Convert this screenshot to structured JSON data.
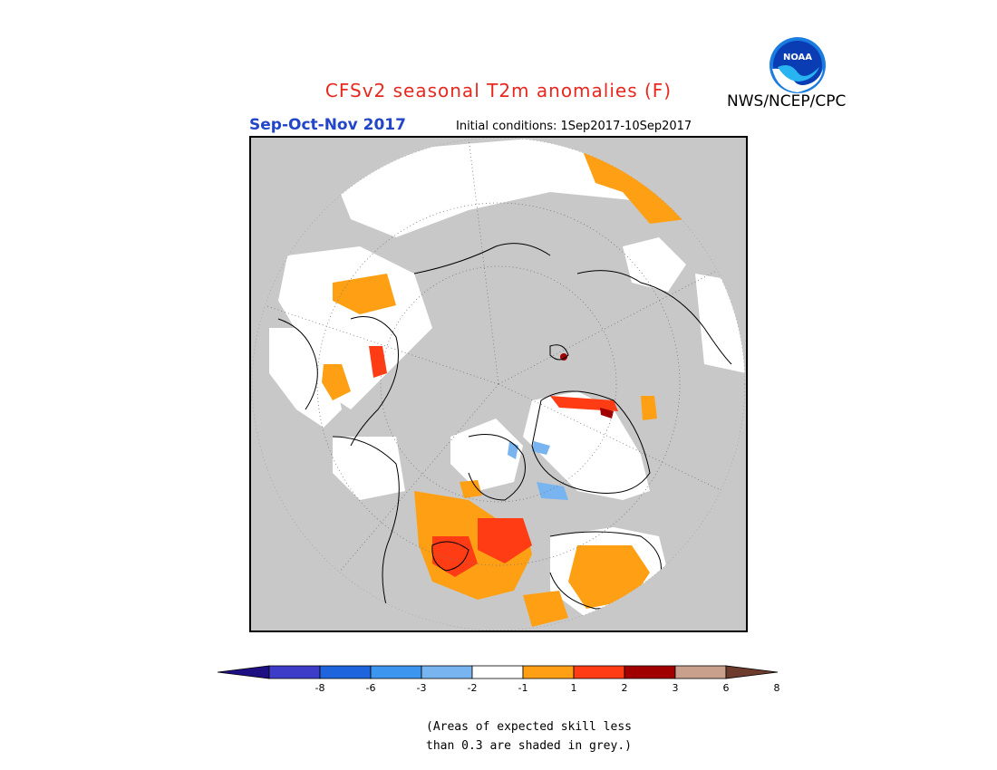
{
  "header": {
    "title": "CFSv2 seasonal T2m anomalies (F)",
    "season": "Sep-Oct-Nov 2017",
    "initial_conditions": "Initial conditions: 1Sep2017-10Sep2017",
    "agency": "NWS/NCEP/CPC",
    "logo_text": "NOAA"
  },
  "legend": {
    "colors": [
      "#1e0f82",
      "#3c3cc8",
      "#1e64dc",
      "#3c96f0",
      "#78b4f0",
      "#ffffff",
      "#ffa014",
      "#ff3c14",
      "#a00000",
      "#c8a08c",
      "#6e3c2d"
    ],
    "tick_labels": [
      "-8",
      "-6",
      "-3",
      "-2",
      "-1",
      "1",
      "2",
      "3",
      "6",
      "8"
    ]
  },
  "note": {
    "line1": "(Areas of expected skill less",
    "line2": "than 0.3 are shaded in grey.)"
  },
  "map": {
    "projection": "north-polar-stereographic",
    "colors": {
      "no_skill": "#c8c8c8",
      "near_normal": "#ffffff",
      "anom_1_2": "#ffa014",
      "anom_2_3": "#ff3c14",
      "anom_3_6": "#a00000",
      "anom_neg_1_2": "#78b4f0"
    }
  }
}
